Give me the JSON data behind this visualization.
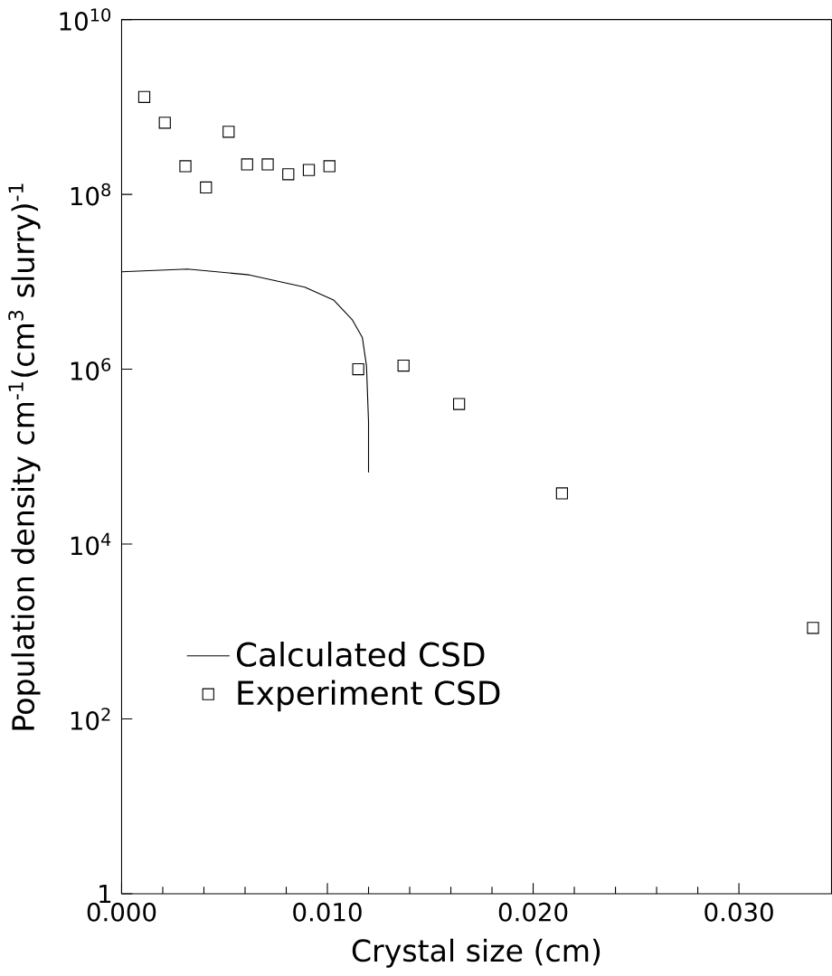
{
  "chart_data": {
    "type": "line",
    "xlabel": "Crystal size (cm)",
    "ylabel": "Population density cm$^{-1}$(cm$^{3}$ slurry)$^{-1}$",
    "log": "y",
    "xlim": [
      0,
      0.0345
    ],
    "xticks": [
      {
        "value": 0,
        "label": "0.000"
      },
      {
        "value": 0.01,
        "label": "0.010"
      },
      {
        "value": 0.02,
        "label": "0.020"
      },
      {
        "value": 0.03,
        "label": "0.030"
      }
    ],
    "ylim": [
      1,
      10000000000.0
    ],
    "yticks": [
      {
        "value": 1,
        "label": "1"
      },
      {
        "value": 100,
        "label": "10$^{2}$"
      },
      {
        "value": 10000,
        "label": "10$^{4}$"
      },
      {
        "value": 1000000,
        "label": "10$^{6}$"
      },
      {
        "value": 100000000,
        "label": "10$^{8}$"
      },
      {
        "value": 10000000000,
        "label": "10$^{10}$"
      }
    ],
    "legend": "bottom left",
    "grid": false,
    "series": [
      {
        "name": "Calculated CSD",
        "color": "#000000",
        "marker": "none",
        "line_style": "solid",
        "x": [
          0,
          0.0032,
          0.0062,
          0.0089,
          0.0103,
          0.0112,
          0.0117,
          0.0119,
          0.012,
          0.012
        ],
        "values": [
          13000000.0,
          14000000.0,
          12000000.0,
          8700000.0,
          6200000.0,
          3700000.0,
          2300000.0,
          1100000.0,
          250000.0,
          66000.0
        ]
      },
      {
        "name": "Experiment CSD",
        "type": "scatter",
        "color": "#000000",
        "marker": "square",
        "x": [
          0.0011,
          0.0021,
          0.0031,
          0.0041,
          0.0052,
          0.0061,
          0.0071,
          0.0081,
          0.0091,
          0.0101,
          0.0115,
          0.0137,
          0.0164,
          0.0214,
          0.0336
        ],
        "values": [
          1300000000.0,
          660000000.0,
          210000000.0,
          120000000.0,
          520000000.0,
          220000000.0,
          220000000.0,
          170000000.0,
          190000000.0,
          210000000.0,
          1000000.0,
          1100000.0,
          400000.0,
          38000.0,
          1100.0
        ]
      }
    ]
  }
}
